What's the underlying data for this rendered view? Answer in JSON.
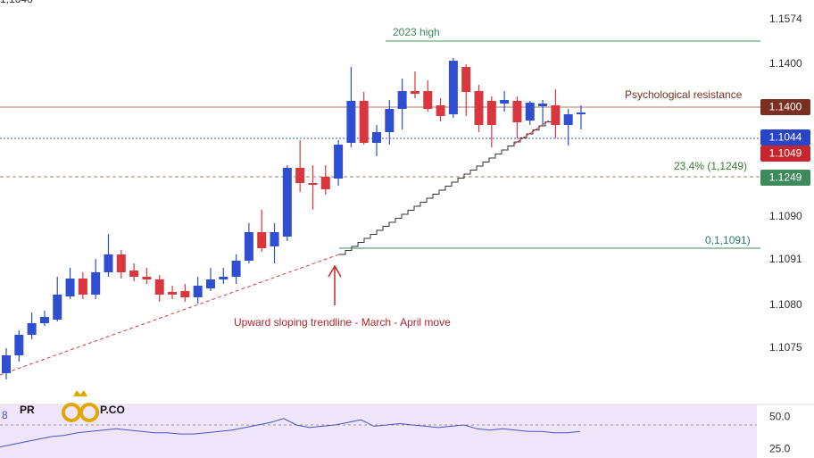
{
  "chart_data": {
    "type": "candlestick",
    "ylim": [
      1.0674,
      1.17
    ],
    "up_color": "#2f4fd0",
    "down_color": "#d9363e",
    "open": [
      1.0864,
      1.0904,
      1.095,
      1.0976,
      1.0984,
      1.1036,
      1.1076,
      1.104,
      1.109,
      1.113,
      1.1094,
      1.108,
      1.1074,
      1.1046,
      1.1048,
      1.1034,
      1.1054,
      1.1074,
      1.108,
      1.1116,
      1.118,
      1.1148,
      1.117,
      1.1324,
      1.129,
      1.1304,
      1.13,
      1.138,
      1.1474,
      1.138,
      1.1404,
      1.1456,
      1.1496,
      1.1496,
      1.1464,
      1.1444,
      1.155,
      1.1496,
      1.1474,
      1.1468,
      1.1474,
      1.143,
      1.1462,
      1.1464,
      1.142,
      1.1444
    ],
    "high": [
      1.092,
      1.096,
      1.1,
      1.1004,
      1.108,
      1.11,
      1.109,
      1.112,
      1.1176,
      1.114,
      1.111,
      1.11,
      1.1084,
      1.106,
      1.1064,
      1.108,
      1.11,
      1.11,
      1.113,
      1.12,
      1.123,
      1.12,
      1.133,
      1.1386,
      1.133,
      1.133,
      1.1386,
      1.155,
      1.1494,
      1.142,
      1.1476,
      1.1524,
      1.154,
      1.152,
      1.148,
      1.157,
      1.1556,
      1.151,
      1.1484,
      1.1496,
      1.1484,
      1.1474,
      1.1476,
      1.15,
      1.1456,
      1.1464
    ],
    "low": [
      1.085,
      1.089,
      1.094,
      1.097,
      1.098,
      1.103,
      1.103,
      1.103,
      1.108,
      1.1076,
      1.107,
      1.1064,
      1.1024,
      1.103,
      1.1024,
      1.102,
      1.1048,
      1.1064,
      1.1064,
      1.111,
      1.1136,
      1.111,
      1.116,
      1.127,
      1.123,
      1.1264,
      1.1284,
      1.137,
      1.1376,
      1.135,
      1.1376,
      1.141,
      1.148,
      1.145,
      1.1428,
      1.1436,
      1.144,
      1.1404,
      1.137,
      1.145,
      1.139,
      1.142,
      1.142,
      1.139,
      1.1374,
      1.141
    ],
    "close": [
      1.0904,
      1.095,
      1.0976,
      1.099,
      1.104,
      1.1076,
      1.104,
      1.109,
      1.113,
      1.109,
      1.108,
      1.1074,
      1.104,
      1.104,
      1.1034,
      1.106,
      1.1074,
      1.108,
      1.1116,
      1.118,
      1.1144,
      1.118,
      1.1324,
      1.129,
      1.1286,
      1.1276,
      1.1376,
      1.1474,
      1.138,
      1.1404,
      1.1456,
      1.1496,
      1.149,
      1.1456,
      1.144,
      1.1564,
      1.1494,
      1.142,
      1.142,
      1.1476,
      1.1426,
      1.147,
      1.1468,
      1.142,
      1.1444,
      1.1448
    ],
    "y_axis_labels": [
      "1,1646",
      "1.1574",
      "1.1400",
      "1.1090",
      "1.1091",
      "1.1080",
      "1.1075"
    ],
    "annotations": {
      "high": "2023 high",
      "resistance": "Psychological resistance",
      "fib": "23,4% (1,1249)",
      "fib_zero": "0,1,1091)",
      "trendline": "Upward sloping trendline - March - April move"
    },
    "badges": [
      {
        "text": "1.1400",
        "color": "#7a2f22"
      },
      {
        "text": "1.1044",
        "color": "#2845c8"
      },
      {
        "text": "1.1049",
        "color": "#c8262e"
      },
      {
        "text": "1.1249",
        "color": "#3f8a5c"
      }
    ],
    "rsi": {
      "type": "line",
      "label": "8",
      "color": "#4a52c8",
      "ylim": [
        18.4,
        59.9
      ],
      "yticks": [
        {
          "value": 50,
          "label": "50.0"
        },
        {
          "value": 25,
          "label": "25.0"
        }
      ],
      "values": [
        27,
        29,
        31,
        33,
        35,
        36,
        38,
        39,
        40,
        41,
        40,
        39,
        38,
        38,
        37,
        37,
        38,
        39,
        40,
        42,
        44,
        46,
        49,
        44,
        42,
        43,
        44,
        46,
        48,
        43,
        44,
        45,
        44,
        43,
        42,
        43,
        44,
        41,
        40,
        41,
        40,
        39,
        39,
        38,
        38,
        39
      ]
    },
    "logo": {
      "left": "PR",
      "right": "P.CO"
    }
  }
}
